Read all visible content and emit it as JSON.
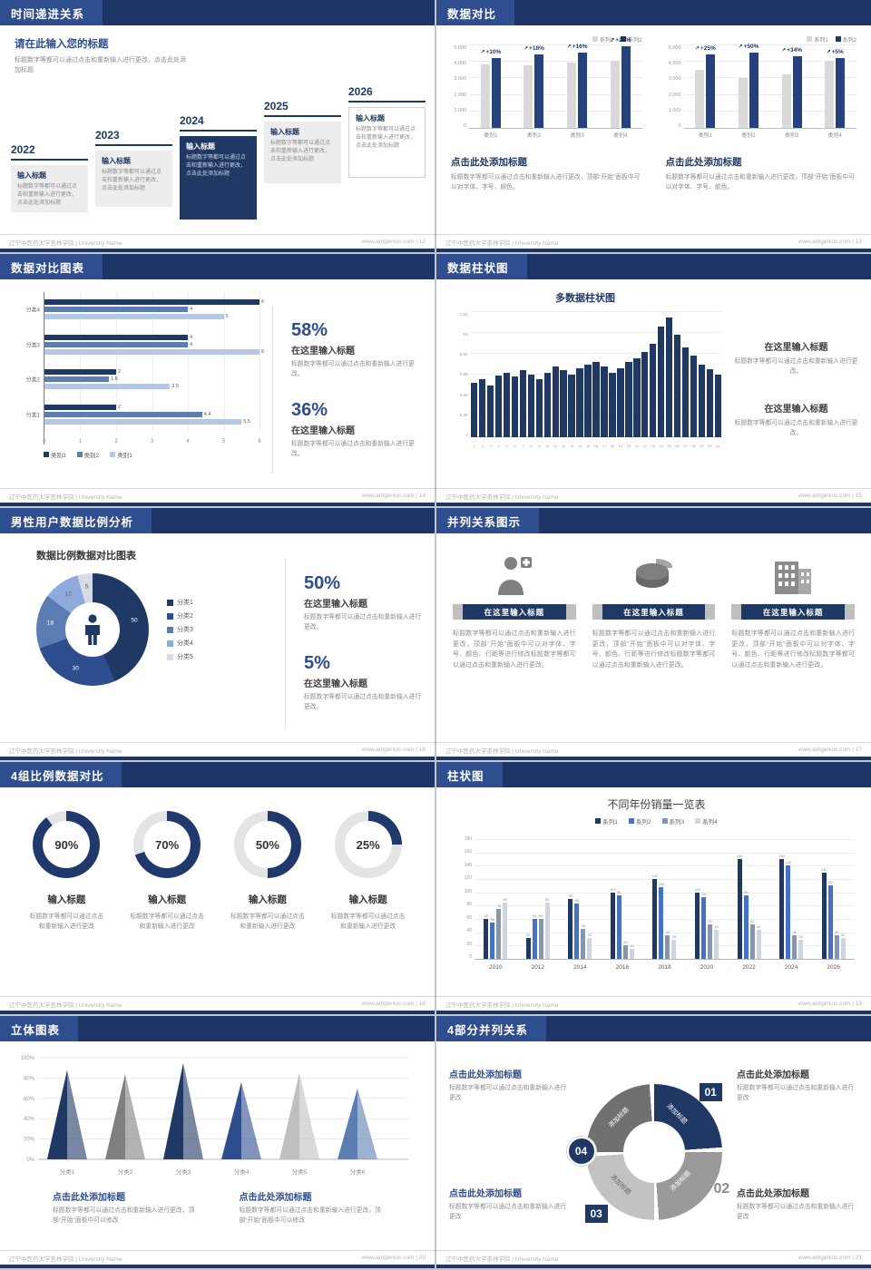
{
  "theme": {
    "navy": "#1f3864",
    "header_bar": "#1d3566",
    "header_chip": "#2f4e8f",
    "accent_text": "#2e4d8f",
    "light_gray": "#d9d9d9"
  },
  "footer": {
    "left": "辽宁中医药大学杏林学院 | University Name",
    "site": "www.aotgenius.com"
  },
  "slides": {
    "timeline": {
      "header": "时间递进关系",
      "page": "12",
      "intro_title": "请在此输入您的标题",
      "intro_body": "标题数字等都可以通过点击和重新输入进行更改，点击此处添加标题",
      "items": [
        {
          "year": "2022",
          "title": "输入标题",
          "body": "标题数字等都可以通过点击和重新输入进行更改，点击此处添加标题"
        },
        {
          "year": "2023",
          "title": "输入标题",
          "body": "标题数字等都可以通过点击和重新输入进行更改，点击此处添加标题"
        },
        {
          "year": "2024",
          "title": "输入标题",
          "body": "标题数字等都可以通过点击和重新输入进行更改，点击此处添加标题"
        },
        {
          "year": "2025",
          "title": "输入标题",
          "body": "标题数字等都可以通过点击和重新输入进行更改，点击此处添加标题"
        },
        {
          "year": "2026",
          "title": "输入标题",
          "body": "标题数字等都可以通过点击和重新输入进行更改，点击此处添加标题"
        }
      ]
    },
    "compare": {
      "header": "数据对比",
      "page": "13",
      "charts": [
        {
          "type": "bar",
          "legend": [
            "系列1",
            "系列2"
          ],
          "categories": [
            "类别1",
            "类别2",
            "类别3",
            "类别4"
          ],
          "series": [
            {
              "name": "系列1",
              "values": [
                3800,
                3750,
                3900,
                4000
              ]
            },
            {
              "name": "系列2",
              "values": [
                4180,
                4430,
                4520,
                4880
              ]
            }
          ],
          "growth_labels": [
            "+10%",
            "+18%",
            "+16%",
            "+22%"
          ],
          "yticks": [
            "5,000",
            "4,000",
            "3,000",
            "2,000",
            "1,000",
            "0"
          ],
          "ymax": 5000,
          "caption_title": "点击此处添加标题",
          "caption_body": "标题数字等都可以通过点击和重新输入进行更改，顶部“开始”面板中可以对字体、字号、颜色。"
        },
        {
          "type": "bar",
          "legend": [
            "系列1",
            "系列2"
          ],
          "categories": [
            "类别1",
            "类别2",
            "类别3",
            "类别4"
          ],
          "series": [
            {
              "name": "系列1",
              "values": [
                3500,
                3000,
                3200,
                4000
              ]
            },
            {
              "name": "系列2",
              "values": [
                4380,
                4500,
                4290,
                4200
              ]
            }
          ],
          "growth_labels": [
            "+25%",
            "+50%",
            "+34%",
            "+5%"
          ],
          "yticks": [
            "5,000",
            "4,000",
            "3,000",
            "2,000",
            "1,000",
            "0"
          ],
          "ymax": 5000,
          "caption_title": "点击此处添加标题",
          "caption_body": "标题数字等都可以通过点击和重新输入进行更改，顶部“开始”面板中可以对字体、字号、颜色。"
        }
      ]
    },
    "hbar": {
      "header": "数据对比图表",
      "page": "14",
      "chart_data": {
        "type": "bar-horizontal",
        "categories": [
          "分类4",
          "分类3",
          "分类2",
          "分类1"
        ],
        "series": [
          {
            "name": "类别3",
            "color": "#1f3864",
            "values": [
              6,
              4,
              2,
              2
            ]
          },
          {
            "name": "类别2",
            "color": "#5b7db1",
            "values": [
              4,
              4,
              1.8,
              4.4
            ]
          },
          {
            "name": "类别1",
            "color": "#b4c7e7",
            "values": [
              5,
              6,
              3.5,
              5.5
            ]
          }
        ],
        "xticks": [
          0,
          1,
          2,
          3,
          4,
          5,
          6
        ],
        "xlim": [
          0,
          6
        ]
      },
      "stats": [
        {
          "percent": "58%",
          "title": "在这里输入标题",
          "body": "标题数字等都可以通过点击和重新输入进行更改。"
        },
        {
          "percent": "36%",
          "title": "在这里输入标题",
          "body": "标题数字等都可以通过点击和重新输入进行更改。"
        }
      ]
    },
    "multibar": {
      "header": "数据柱状图",
      "page": "15",
      "chart_title": "多数据柱状图",
      "chart_data": {
        "type": "bar",
        "x": [
          "1",
          "2",
          "3",
          "4",
          "5",
          "6",
          "7",
          "8",
          "9",
          "10",
          "11",
          "12",
          "13",
          "14",
          "15",
          "16",
          "17",
          "18",
          "19",
          "20",
          "21",
          "22",
          "23",
          "24",
          "25",
          "26",
          "27",
          "28",
          "29",
          "30",
          "31"
        ],
        "values": [
          520,
          560,
          500,
          590,
          620,
          580,
          640,
          600,
          560,
          620,
          680,
          640,
          600,
          660,
          700,
          720,
          680,
          620,
          660,
          720,
          760,
          820,
          900,
          1060,
          1150,
          980,
          860,
          780,
          700,
          650,
          600
        ],
        "yticks": [
          "1.2K",
          "1K",
          "0.8K",
          "0.6K",
          "0.4K",
          "0.2K",
          "0"
        ],
        "ymax": 1200,
        "bar_color": "#1f3864"
      },
      "blocks": [
        {
          "title": "在这里输入标题",
          "body": "标题数字等都可以通过点击和重新输入进行更改。"
        },
        {
          "title": "在这里输入标题",
          "body": "标题数字等都可以通过点击和重新输入进行更改。"
        }
      ]
    },
    "donut": {
      "header": "男性用户数据比例分析",
      "page": "16",
      "chart_title": "数据比例数据对比图表",
      "chart_data": {
        "type": "pie",
        "labels": [
          "分类1",
          "分类2",
          "分类3",
          "分类4",
          "分类5"
        ],
        "values": [
          50,
          30,
          18,
          12,
          5
        ],
        "colors": [
          "#1f3864",
          "#2e4d8f",
          "#5b7db1",
          "#8faadc",
          "#d6dce5"
        ]
      },
      "stats": [
        {
          "percent": "50%",
          "title": "在这里输入标题",
          "body": "标题数字等都可以通过点击和重新输入进行更改。"
        },
        {
          "percent": "5%",
          "title": "在这里输入标题",
          "body": "标题数字等都可以通过点击和重新输入进行更改。"
        }
      ]
    },
    "parallel3": {
      "header": "并列关系图示",
      "page": "17",
      "items": [
        {
          "icon": "medical-person-icon",
          "title": "在这里输入标题",
          "body": "标题数字等都可以通过点击和重新输入进行更改，顶部“开始”面板中可以对字体、字号、颜色、行距等进行修改标题数字等都可以通过点击和重新输入进行更改。"
        },
        {
          "icon": "pie-chart-3d-icon",
          "title": "在这里输入标题",
          "body": "标题数字等都可以通过点击和重新输入进行更改，顶部“开始”面板中可以对字体、字号、颜色、行距等进行修改标题数字等都可以通过点击和重新输入进行更改。"
        },
        {
          "icon": "building-icon",
          "title": "在这里输入标题",
          "body": "标题数字等都可以通过点击和重新输入进行更改，顶部“开始”面板中可以对字体、字号、颜色、行距等进行修改标题数字等都可以通过点击和重新输入进行更改。"
        }
      ]
    },
    "rings": {
      "header": "4组比例数据对比",
      "page": "18",
      "items": [
        {
          "percent": 90,
          "label": "90%",
          "title": "输入标题",
          "body": "标题数字等都可以通过点击和重新输入进行更改"
        },
        {
          "percent": 70,
          "label": "70%",
          "title": "输入标题",
          "body": "标题数字等都可以通过点击和重新输入进行更改"
        },
        {
          "percent": 50,
          "label": "50%",
          "title": "输入标题",
          "body": "标题数字等都可以通过点击和重新输入进行更改"
        },
        {
          "percent": 25,
          "label": "25%",
          "title": "输入标题",
          "body": "标题数字等都可以通过点击和重新输入进行更改"
        }
      ]
    },
    "grouped": {
      "header": "柱状图",
      "page": "19",
      "chart_data": {
        "type": "bar",
        "title": "不同年份销量一览表",
        "categories": [
          "2010",
          "2012",
          "2014",
          "2016",
          "2018",
          "2020",
          "2022",
          "2024",
          "2026"
        ],
        "series": [
          {
            "name": "系列1",
            "color": "#1f3864",
            "values": [
              60,
              32,
              90,
              100,
              120,
              100,
              150,
              150,
              130
            ]
          },
          {
            "name": "系列2",
            "color": "#4472c4",
            "values": [
              55,
              60,
              83,
              95,
              108,
              93,
              95,
              140,
              110
            ]
          },
          {
            "name": "系列3",
            "color": "#8496b0",
            "values": [
              75,
              60,
              45,
              20,
              35,
              52,
              52,
              36,
              36
            ]
          },
          {
            "name": "系列4",
            "color": "#cfd5e0",
            "values": [
              85,
              85,
              32,
              15,
              28,
              43,
              43,
              28,
              32
            ]
          }
        ],
        "ylim": [
          0,
          180
        ],
        "yticks": [
          0,
          20,
          40,
          60,
          80,
          100,
          120,
          140,
          160,
          180
        ]
      }
    },
    "cones": {
      "header": "立体图表",
      "page": "20",
      "chart_data": {
        "type": "cone",
        "categories": [
          "分类1",
          "分类2",
          "分类3",
          "分类4",
          "分类5",
          "分类6"
        ],
        "values": [
          88,
          84,
          95,
          76,
          85,
          70
        ],
        "colors": [
          "#1f3864",
          "#7f7f7f",
          "#1f3864",
          "#2e4d8f",
          "#bfbfbf",
          "#5b7db1"
        ],
        "yticks": [
          "0%",
          "20%",
          "40%",
          "60%",
          "80%",
          "100%"
        ]
      },
      "captions": [
        {
          "title": "点击此处添加标题",
          "body": "标题数字等都可以通过点击和重新输入进行更改，顶部“开始”面板中可以修改"
        },
        {
          "title": "点击此处添加标题",
          "body": "标题数字等都可以通过点击和重新输入进行更改，顶部“开始”面板中可以修改"
        }
      ]
    },
    "circle4": {
      "header": "4部分并列关系",
      "page": "21",
      "segments": [
        {
          "num": "01",
          "label": "添加标题"
        },
        {
          "num": "02",
          "label": "添加标题"
        },
        {
          "num": "03",
          "label": "添加标题"
        },
        {
          "num": "04",
          "label": "添加标题"
        }
      ],
      "corners": [
        {
          "title": "点击此处添加标题",
          "body": "标题数字等都可以通过点击和重新输入进行更改"
        },
        {
          "title": "点击此处添加标题",
          "body": "标题数字等都可以通过点击和重新输入进行更改"
        },
        {
          "title": "点击此处添加标题",
          "body": "标题数字等都可以通过点击和重新输入进行更改"
        },
        {
          "title": "点击此处添加标题",
          "body": "标题数字等都可以通过点击和重新输入进行更改"
        }
      ]
    }
  }
}
